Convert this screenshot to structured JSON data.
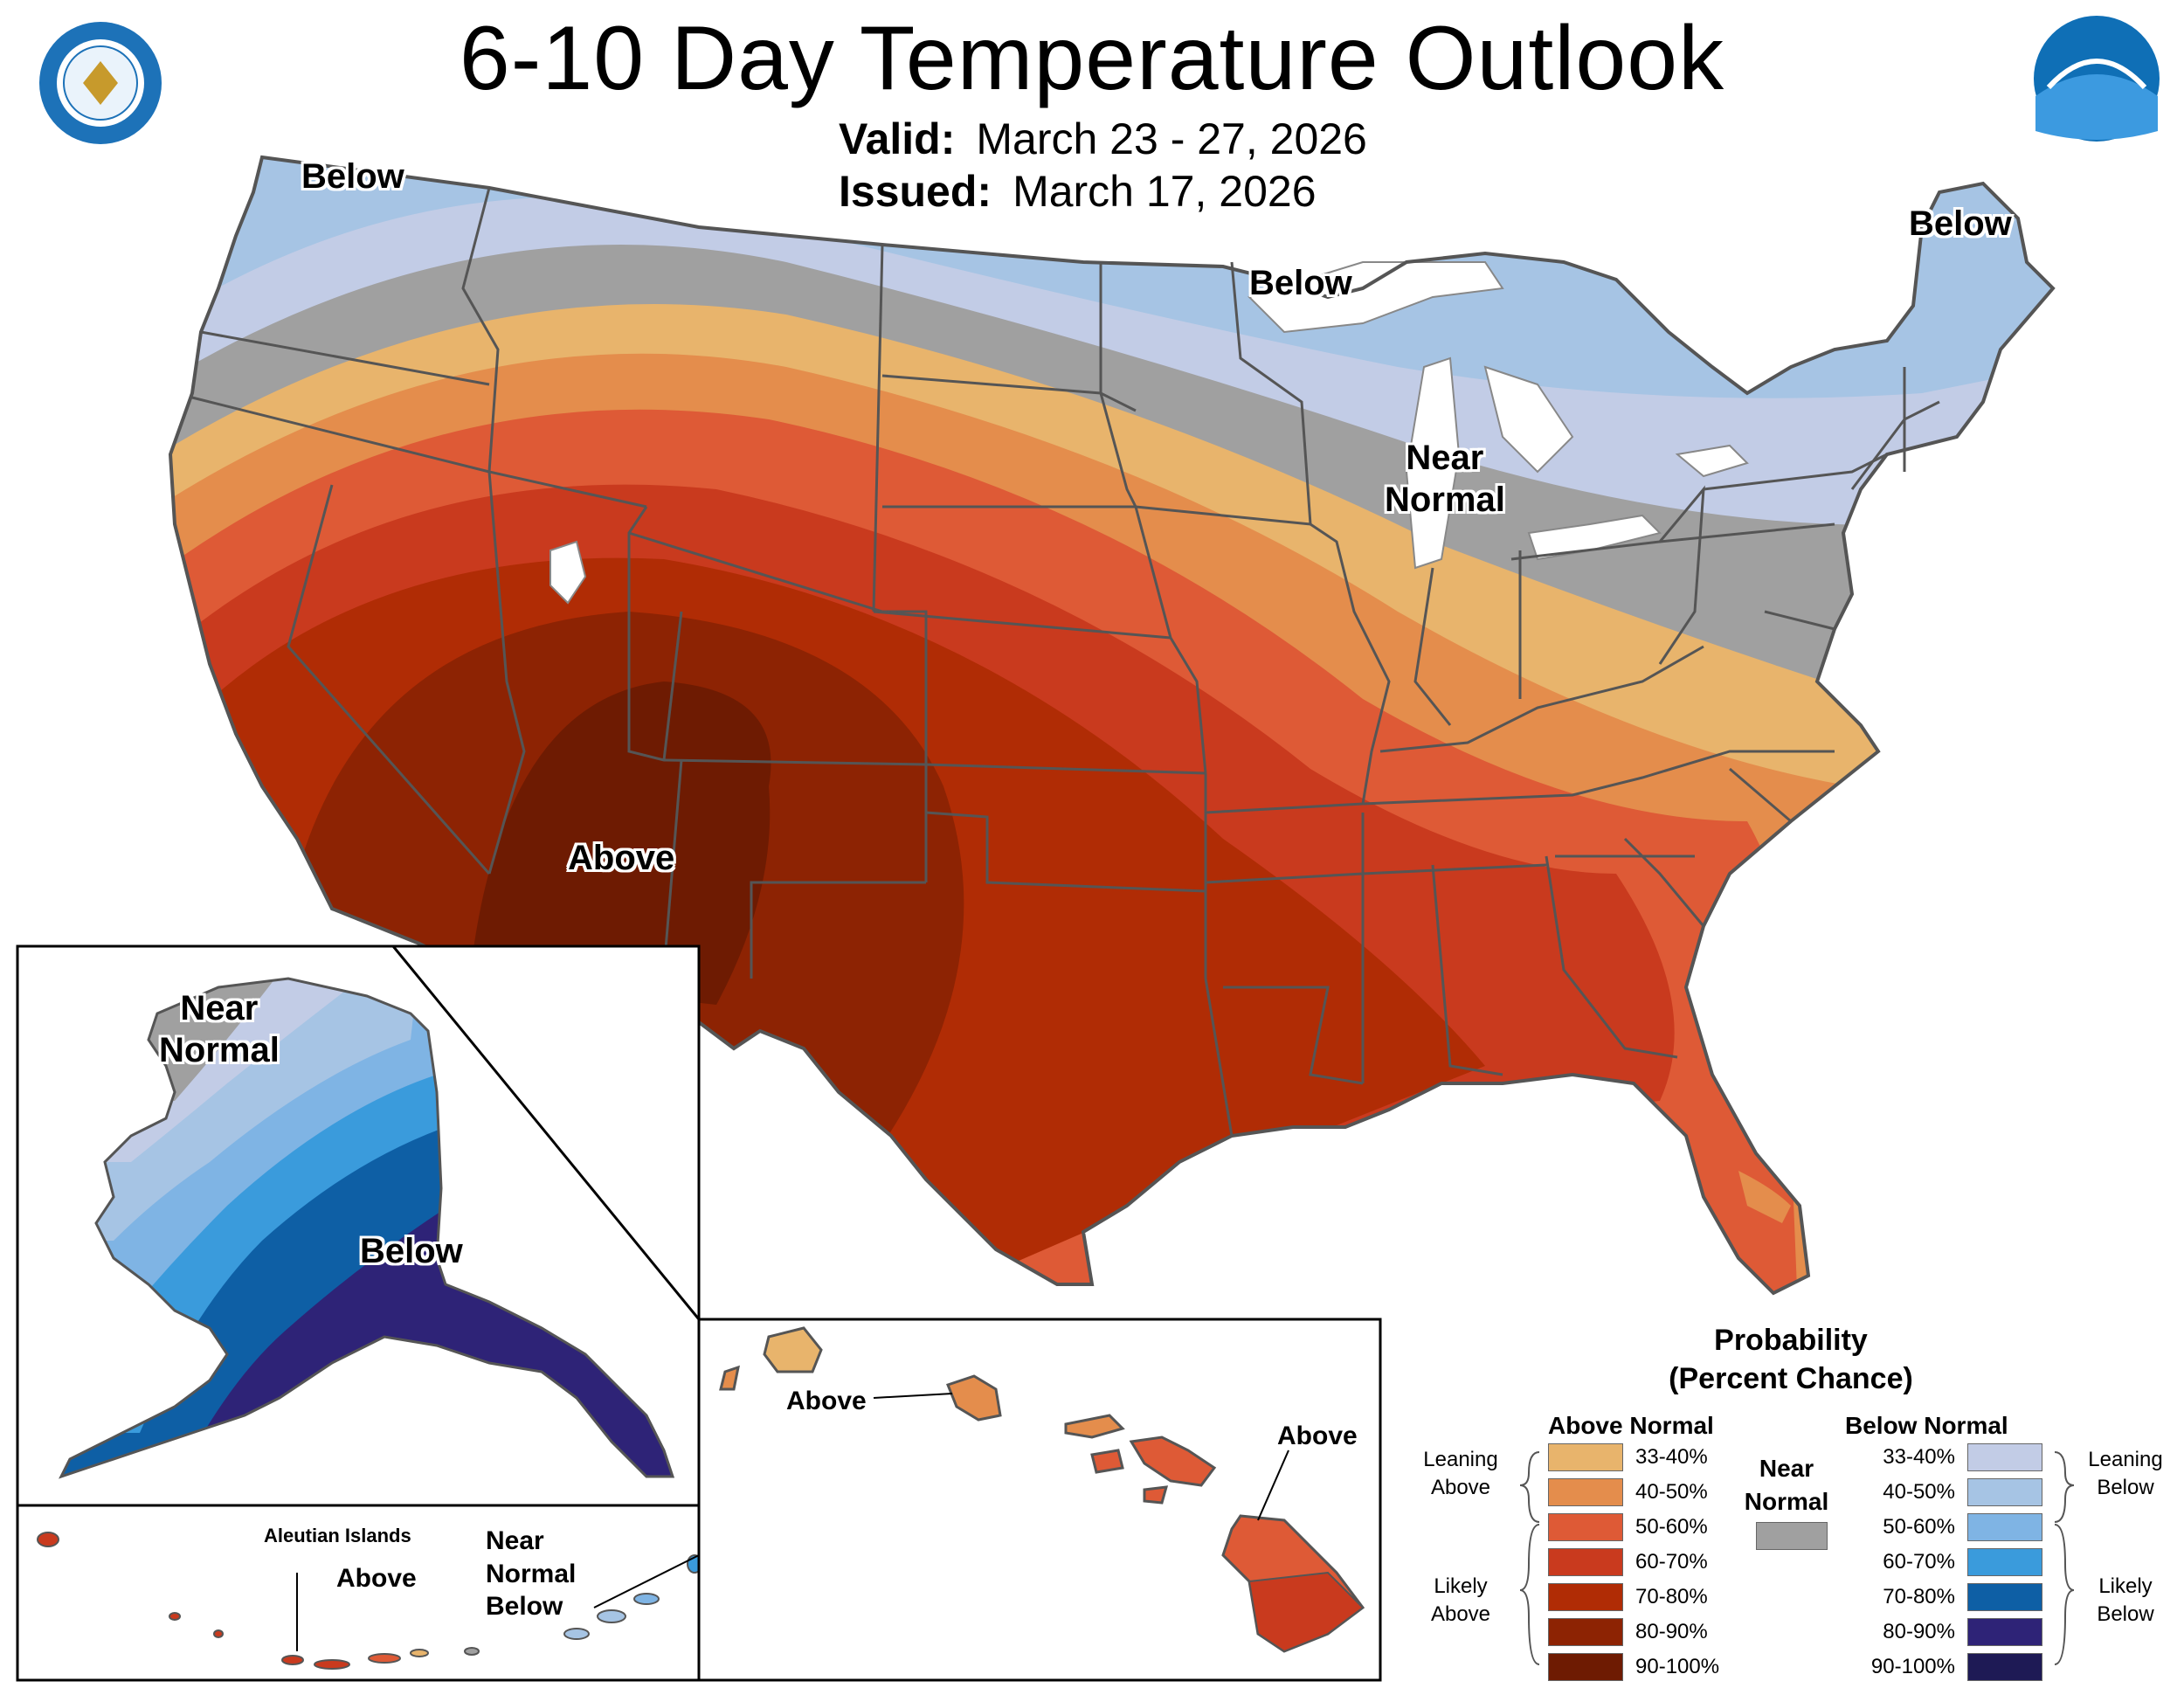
{
  "title": "6-10 Day Temperature Outlook",
  "valid_label": "Valid:",
  "valid_value": "March 23 - 27, 2026",
  "issued_label": "Issued:",
  "issued_value": "March 17, 2026",
  "logos": {
    "left": "Department of Commerce seal",
    "right": "NOAA"
  },
  "map_labels": {
    "below_northwest": "Below",
    "below_upper_midwest": "Below",
    "below_maine": "Below",
    "near_normal_great_lakes": "Near\nNormal",
    "above_southwest": "Above"
  },
  "alaska_labels": {
    "near_normal": "Near\nNormal",
    "below": "Below"
  },
  "aleutian_labels": {
    "title": "Aleutian Islands",
    "above": "Above",
    "near_normal_below": "Near\nNormal\nBelow"
  },
  "hawaii_labels": {
    "above_west": "Above",
    "above_east": "Above"
  },
  "legend": {
    "title": "Probability\n(Percent Chance)",
    "above_header": "Above Normal",
    "below_header": "Below Normal",
    "near_normal": "Near\nNormal",
    "leaning_above": "Leaning\nAbove",
    "likely_above": "Likely\nAbove",
    "leaning_below": "Leaning\nBelow",
    "likely_below": "Likely\nBelow",
    "above_bins": [
      {
        "range": "33-40%",
        "color": "#E8B46C"
      },
      {
        "range": "40-50%",
        "color": "#E48D4C"
      },
      {
        "range": "50-60%",
        "color": "#DE5A36"
      },
      {
        "range": "60-70%",
        "color": "#C93A1E"
      },
      {
        "range": "70-80%",
        "color": "#B02C05"
      },
      {
        "range": "80-90%",
        "color": "#8D2303"
      },
      {
        "range": "90-100%",
        "color": "#6E1B02"
      }
    ],
    "near_color": "#A0A0A0",
    "below_bins": [
      {
        "range": "33-40%",
        "color": "#C2CCE6"
      },
      {
        "range": "40-50%",
        "color": "#A6C4E4"
      },
      {
        "range": "50-60%",
        "color": "#7FB4E4"
      },
      {
        "range": "60-70%",
        "color": "#3A9BDC"
      },
      {
        "range": "70-80%",
        "color": "#0E5FA5"
      },
      {
        "range": "80-90%",
        "color": "#2E2377"
      },
      {
        "range": "90-100%",
        "color": "#1E1A55"
      }
    ]
  }
}
